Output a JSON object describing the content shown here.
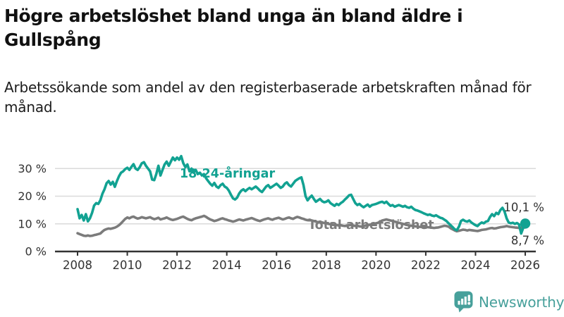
{
  "chart_data": {
    "type": "line",
    "title": "Högre arbetslöshet bland unga än bland äldre i Gullspång",
    "subtitle": "Arbetssökande som andel av den registerbaserade arbetskraften månad för månad.",
    "x_start_year": 2008,
    "x_step_years": 0.08333333,
    "x_ticks": [
      2008,
      2010,
      2012,
      2014,
      2016,
      2018,
      2020,
      2022,
      2024,
      2026
    ],
    "y_ticks": [
      {
        "label": "0 %",
        "value": 0
      },
      {
        "label": "10 %",
        "value": 10
      },
      {
        "label": "20 %",
        "value": 20
      },
      {
        "label": "30 %",
        "value": 30
      }
    ],
    "ylim": [
      0,
      37
    ],
    "xlim_years": [
      2007.1,
      2026.4
    ],
    "grid": true,
    "legend_position": "inline-labels",
    "series": [
      {
        "name": "18-24-åringar",
        "color": "#12A292",
        "end_label": "10,1 %",
        "end_value": 10.1,
        "end_dot": true,
        "values": [
          15.3,
          12.0,
          13.2,
          11.2,
          13.5,
          10.9,
          12.0,
          14.0,
          16.6,
          17.5,
          17.2,
          18.5,
          20.9,
          22.5,
          24.7,
          25.5,
          24.2,
          25.2,
          23.4,
          25.5,
          27.2,
          28.5,
          29.0,
          29.8,
          30.3,
          29.5,
          30.6,
          31.6,
          30.0,
          29.5,
          30.5,
          31.9,
          32.3,
          31.0,
          30.0,
          29.0,
          26.0,
          25.8,
          28.0,
          31.0,
          27.5,
          29.5,
          31.5,
          32.5,
          31.0,
          32.5,
          34.0,
          33.0,
          34.0,
          33.2,
          34.5,
          32.0,
          30.5,
          31.5,
          29.0,
          30.0,
          28.5,
          29.5,
          28.0,
          28.5,
          27.5,
          28.0,
          26.5,
          25.5,
          24.5,
          23.8,
          24.8,
          23.5,
          23.0,
          24.0,
          24.5,
          23.5,
          23.0,
          22.0,
          20.5,
          19.2,
          18.8,
          19.5,
          21.0,
          22.0,
          22.5,
          21.8,
          22.5,
          23.0,
          22.5,
          23.0,
          23.5,
          22.8,
          22.0,
          21.5,
          22.5,
          23.5,
          24.0,
          23.0,
          23.5,
          24.0,
          24.5,
          23.8,
          23.0,
          23.5,
          24.5,
          25.0,
          24.0,
          23.5,
          24.5,
          25.5,
          26.0,
          26.5,
          26.8,
          24.0,
          20.0,
          18.5,
          19.5,
          20.2,
          19.0,
          18.0,
          18.5,
          19.0,
          18.2,
          17.8,
          18.0,
          18.5,
          17.5,
          17.0,
          16.5,
          17.2,
          16.8,
          17.5,
          18.0,
          18.8,
          19.5,
          20.3,
          20.5,
          19.0,
          17.5,
          16.8,
          17.2,
          16.5,
          16.0,
          16.5,
          17.0,
          16.2,
          16.8,
          17.0,
          17.2,
          17.5,
          17.8,
          18.0,
          17.5,
          18.0,
          17.2,
          16.5,
          16.8,
          16.2,
          16.5,
          16.8,
          16.5,
          16.2,
          16.5,
          16.0,
          15.8,
          16.2,
          15.5,
          15.0,
          14.8,
          14.5,
          14.2,
          13.8,
          13.5,
          13.2,
          13.4,
          13.0,
          12.8,
          13.1,
          12.6,
          12.2,
          12.0,
          11.5,
          11.0,
          10.2,
          9.5,
          8.8,
          8.0,
          7.7,
          9.0,
          11.0,
          11.5,
          11.0,
          10.8,
          11.2,
          10.5,
          10.0,
          9.5,
          9.2,
          10.0,
          10.5,
          10.2,
          10.8,
          11.0,
          12.5,
          13.5,
          12.8,
          14.0,
          13.5,
          15.0,
          15.8,
          14.5,
          12.0,
          10.5,
          10.2,
          10.4,
          10.0,
          10.3,
          9.8,
          6.5,
          8.5,
          10.1
        ]
      },
      {
        "name": "Total arbetslöshet",
        "color": "#7B7B7B",
        "end_label": "8,7 %",
        "end_value": 8.7,
        "end_dot": false,
        "values": [
          6.6,
          6.3,
          6.0,
          5.7,
          5.6,
          5.8,
          5.6,
          5.7,
          5.9,
          6.1,
          6.3,
          6.5,
          7.2,
          7.8,
          8.1,
          8.3,
          8.2,
          8.4,
          8.6,
          9.0,
          9.5,
          10.2,
          11.0,
          11.8,
          12.3,
          12.0,
          12.4,
          12.6,
          12.2,
          11.9,
          12.1,
          12.4,
          12.2,
          12.0,
          12.2,
          12.4,
          12.0,
          11.7,
          11.9,
          12.2,
          11.6,
          11.8,
          12.0,
          12.3,
          11.9,
          11.6,
          11.4,
          11.6,
          11.8,
          12.1,
          12.4,
          12.6,
          12.2,
          11.8,
          11.5,
          11.3,
          11.7,
          12.0,
          12.2,
          12.4,
          12.6,
          12.9,
          12.5,
          12.0,
          11.6,
          11.3,
          11.0,
          11.2,
          11.5,
          11.8,
          12.0,
          11.7,
          11.5,
          11.2,
          11.0,
          10.8,
          11.0,
          11.3,
          11.6,
          11.4,
          11.2,
          11.5,
          11.7,
          11.9,
          12.1,
          11.8,
          11.5,
          11.2,
          11.0,
          11.3,
          11.6,
          11.8,
          12.0,
          11.7,
          11.5,
          11.8,
          12.0,
          12.2,
          11.9,
          11.6,
          11.8,
          12.1,
          12.3,
          12.0,
          11.8,
          12.2,
          12.5,
          12.3,
          12.0,
          11.8,
          11.5,
          11.3,
          11.5,
          11.2,
          11.0,
          10.8,
          10.6,
          10.8,
          10.5,
          10.3,
          10.2,
          10.0,
          9.8,
          9.7,
          9.5,
          9.6,
          9.4,
          9.5,
          9.3,
          9.2,
          9.4,
          9.5,
          9.6,
          9.4,
          9.2,
          9.3,
          9.1,
          9.0,
          9.2,
          9.4,
          9.5,
          9.7,
          9.8,
          10.0,
          10.2,
          10.4,
          10.8,
          11.2,
          11.4,
          11.6,
          11.4,
          11.2,
          11.0,
          10.8,
          10.6,
          10.4,
          10.2,
          10.0,
          9.8,
          9.6,
          9.4,
          9.3,
          9.2,
          9.1,
          9.0,
          8.9,
          8.9,
          8.9,
          8.9,
          8.8,
          8.7,
          8.6,
          8.5,
          8.6,
          8.7,
          8.9,
          9.1,
          9.3,
          9.2,
          9.0,
          8.4,
          8.0,
          7.6,
          7.3,
          7.5,
          7.7,
          7.9,
          7.8,
          7.6,
          7.8,
          7.7,
          7.6,
          7.5,
          7.4,
          7.6,
          7.8,
          7.9,
          8.0,
          8.2,
          8.4,
          8.5,
          8.3,
          8.4,
          8.6,
          8.8,
          8.9,
          9.0,
          9.2,
          9.0,
          8.9,
          8.8,
          8.7,
          8.6,
          8.5,
          8.6,
          8.7,
          8.7
        ]
      }
    ]
  },
  "footer": {
    "brand": "Newsworthy",
    "logo_icon": "bar-chart-speech-bubble-icon"
  },
  "colors": {
    "accent_teal": "#12A292",
    "line_gray": "#7B7B7B",
    "grid": "#DADADA",
    "axis": "#333333",
    "axis_text": "#333333",
    "title_text": "#111111",
    "logo_teal": "#47A09B"
  }
}
